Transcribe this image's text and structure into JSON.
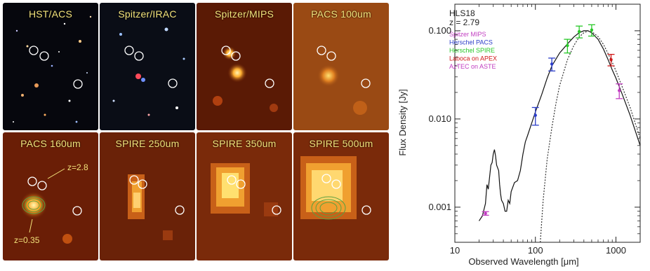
{
  "panels": [
    {
      "label": "HST/ACS",
      "bg": "#0a0a10"
    },
    {
      "label": "Spitzer/IRAC",
      "bg": "#0b0d14"
    },
    {
      "label": "Spitzer/MIPS",
      "bg": "#5a1a05"
    },
    {
      "label": "PACS 100um",
      "bg": "#9a4a14"
    },
    {
      "label": "PACS 160um",
      "bg": "#6a1e06"
    },
    {
      "label": "SPIRE 250um",
      "bg": "#6a2208"
    },
    {
      "label": "SPIRE 350um",
      "bg": "#7a2a0a"
    },
    {
      "label": "SPIRE 500um",
      "bg": "#7a2a0a"
    }
  ],
  "annotations": {
    "z_high": "z=2.8",
    "z_low": "z=0.35"
  },
  "chart_data": {
    "type": "scatter",
    "source_name": "HLS18",
    "redshift_label": "z = 2.79",
    "xlabel": "Observed Wavelength [μm]",
    "ylabel": "Flux Density [Jy]",
    "xscale": "log",
    "yscale": "log",
    "xlim": [
      10,
      2000
    ],
    "ylim": [
      0.0004,
      0.2
    ],
    "xticks": [
      10,
      100,
      1000
    ],
    "xtick_labels": [
      "10",
      "100",
      "1000"
    ],
    "yticks": [
      0.001,
      0.01,
      0.1
    ],
    "ytick_labels": [
      "0.001",
      "0.010",
      "0.100"
    ],
    "legend_placement": "top-left",
    "series": [
      {
        "name": "Spitzer MIPS",
        "color": "#c03cc0",
        "points": [
          {
            "x": 24,
            "y": 0.00085,
            "err": 4e-05
          }
        ]
      },
      {
        "name": "Herschel PACS",
        "color": "#2a3cc8",
        "points": [
          {
            "x": 100,
            "y": 0.011,
            "err": 0.0025
          },
          {
            "x": 160,
            "y": 0.042,
            "err": 0.007
          }
        ]
      },
      {
        "name": "Herschel SPIRE",
        "color": "#28c828",
        "points": [
          {
            "x": 250,
            "y": 0.068,
            "err": 0.012
          },
          {
            "x": 350,
            "y": 0.098,
            "err": 0.015
          },
          {
            "x": 500,
            "y": 0.102,
            "err": 0.015
          }
        ]
      },
      {
        "name": "Laboca on APEX",
        "color": "#d01818",
        "points": [
          {
            "x": 870,
            "y": 0.047,
            "err": 0.007
          }
        ]
      },
      {
        "name": "AzTEC on ASTE",
        "color": "#c03cc0",
        "points": [
          {
            "x": 1100,
            "y": 0.021,
            "err": 0.004
          }
        ]
      }
    ],
    "model_solid": [
      [
        20,
        0.0007
      ],
      [
        22,
        0.0008
      ],
      [
        24,
        0.0011
      ],
      [
        25,
        0.0018
      ],
      [
        26,
        0.0016
      ],
      [
        27,
        0.0022
      ],
      [
        28,
        0.003
      ],
      [
        29,
        0.0032
      ],
      [
        30,
        0.004
      ],
      [
        31,
        0.0045
      ],
      [
        32,
        0.0038
      ],
      [
        33,
        0.003
      ],
      [
        35,
        0.0026
      ],
      [
        36,
        0.0018
      ],
      [
        37,
        0.0014
      ],
      [
        38,
        0.0012
      ],
      [
        40,
        0.0011
      ],
      [
        42,
        0.0009
      ],
      [
        44,
        0.0009
      ],
      [
        46,
        0.0012
      ],
      [
        48,
        0.0011
      ],
      [
        50,
        0.0015
      ],
      [
        55,
        0.0019
      ],
      [
        60,
        0.002
      ],
      [
        65,
        0.0026
      ],
      [
        70,
        0.004
      ],
      [
        75,
        0.0055
      ],
      [
        80,
        0.0065
      ],
      [
        90,
        0.009
      ],
      [
        100,
        0.012
      ],
      [
        120,
        0.019
      ],
      [
        140,
        0.029
      ],
      [
        160,
        0.04
      ],
      [
        200,
        0.056
      ],
      [
        250,
        0.071
      ],
      [
        300,
        0.085
      ],
      [
        350,
        0.095
      ],
      [
        400,
        0.1
      ],
      [
        450,
        0.1
      ],
      [
        500,
        0.095
      ],
      [
        600,
        0.08
      ],
      [
        700,
        0.062
      ],
      [
        800,
        0.047
      ],
      [
        900,
        0.036
      ],
      [
        1000,
        0.029
      ],
      [
        1200,
        0.019
      ],
      [
        1500,
        0.011
      ],
      [
        2000,
        0.005
      ]
    ],
    "model_dotted": [
      [
        115,
        0.0004
      ],
      [
        125,
        0.0012
      ],
      [
        140,
        0.0035
      ],
      [
        160,
        0.008
      ],
      [
        180,
        0.015
      ],
      [
        200,
        0.024
      ],
      [
        250,
        0.047
      ],
      [
        300,
        0.068
      ],
      [
        350,
        0.085
      ],
      [
        400,
        0.095
      ],
      [
        450,
        0.099
      ],
      [
        500,
        0.098
      ],
      [
        600,
        0.086
      ],
      [
        700,
        0.07
      ],
      [
        800,
        0.055
      ],
      [
        900,
        0.044
      ],
      [
        1000,
        0.035
      ],
      [
        1200,
        0.023
      ],
      [
        1500,
        0.0135
      ],
      [
        2000,
        0.006
      ]
    ]
  }
}
